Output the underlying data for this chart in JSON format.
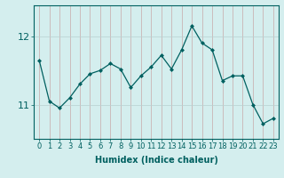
{
  "x": [
    0,
    1,
    2,
    3,
    4,
    5,
    6,
    7,
    8,
    9,
    10,
    11,
    12,
    13,
    14,
    15,
    16,
    17,
    18,
    19,
    20,
    21,
    22,
    23
  ],
  "y": [
    11.65,
    11.05,
    10.95,
    11.1,
    11.3,
    11.45,
    11.5,
    11.6,
    11.52,
    11.25,
    11.42,
    11.55,
    11.72,
    11.52,
    11.8,
    12.15,
    11.9,
    11.8,
    11.35,
    11.42,
    11.42,
    11.0,
    10.72,
    10.8
  ],
  "line_color": "#006060",
  "marker": "D",
  "marker_size": 2.0,
  "linewidth": 0.9,
  "background_color": "#d4eeee",
  "grid_color_x": "#c8a8a8",
  "grid_color_y": "#b8d0d0",
  "xlabel": "Humidex (Indice chaleur)",
  "xlabel_fontsize": 7,
  "tick_fontsize": 6,
  "yticks": [
    11,
    12
  ],
  "ylim": [
    10.5,
    12.45
  ],
  "xlim": [
    -0.5,
    23.5
  ],
  "text_color": "#006060"
}
